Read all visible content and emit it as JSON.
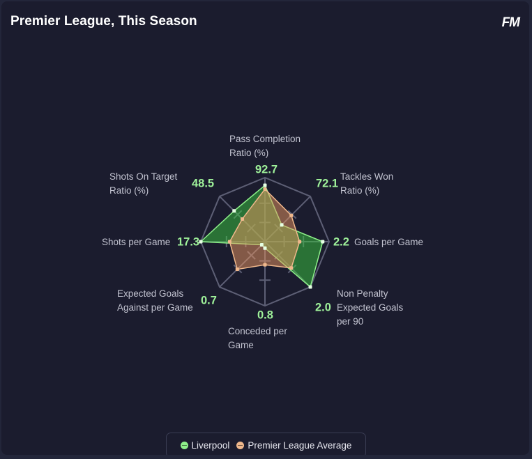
{
  "header": {
    "title": "Premier League, This Season",
    "brand": "FM"
  },
  "colors": {
    "liverpool": "#8ef08a",
    "average": "#f0b88c",
    "grid": "#5d5f75"
  },
  "chart_data": {
    "type": "radar",
    "axes": [
      {
        "label": [
          "Pass Completion",
          "Ratio (%)"
        ],
        "value_label": "92.7"
      },
      {
        "label": [
          "Tackles Won",
          "Ratio (%)"
        ],
        "value_label": "72.1"
      },
      {
        "label": [
          "Goals per Game"
        ],
        "value_label": "2.2"
      },
      {
        "label": [
          "Non Penalty",
          "Expected Goals",
          "per 90"
        ],
        "value_label": "2.0"
      },
      {
        "label": [
          "Conceded per",
          "Game"
        ],
        "value_label": "0.8"
      },
      {
        "label": [
          "Expected Goals",
          "Against per Game"
        ],
        "value_label": "0.7"
      },
      {
        "label": [
          "Shots per Game"
        ],
        "value_label": "17.3"
      },
      {
        "label": [
          "Shots On Target",
          "Ratio (%)"
        ],
        "value_label": "48.5"
      }
    ],
    "series": [
      {
        "name": "Liverpool",
        "normalized": [
          0.88,
          0.37,
          0.9,
          1.0,
          0.1,
          0.07,
          1.0,
          0.68
        ]
      },
      {
        "name": "Premier League Average",
        "normalized": [
          0.82,
          0.58,
          0.54,
          0.58,
          0.36,
          0.61,
          0.55,
          0.5
        ]
      }
    ]
  },
  "legend": [
    {
      "label": "Liverpool"
    },
    {
      "label": "Premier League Average"
    }
  ]
}
